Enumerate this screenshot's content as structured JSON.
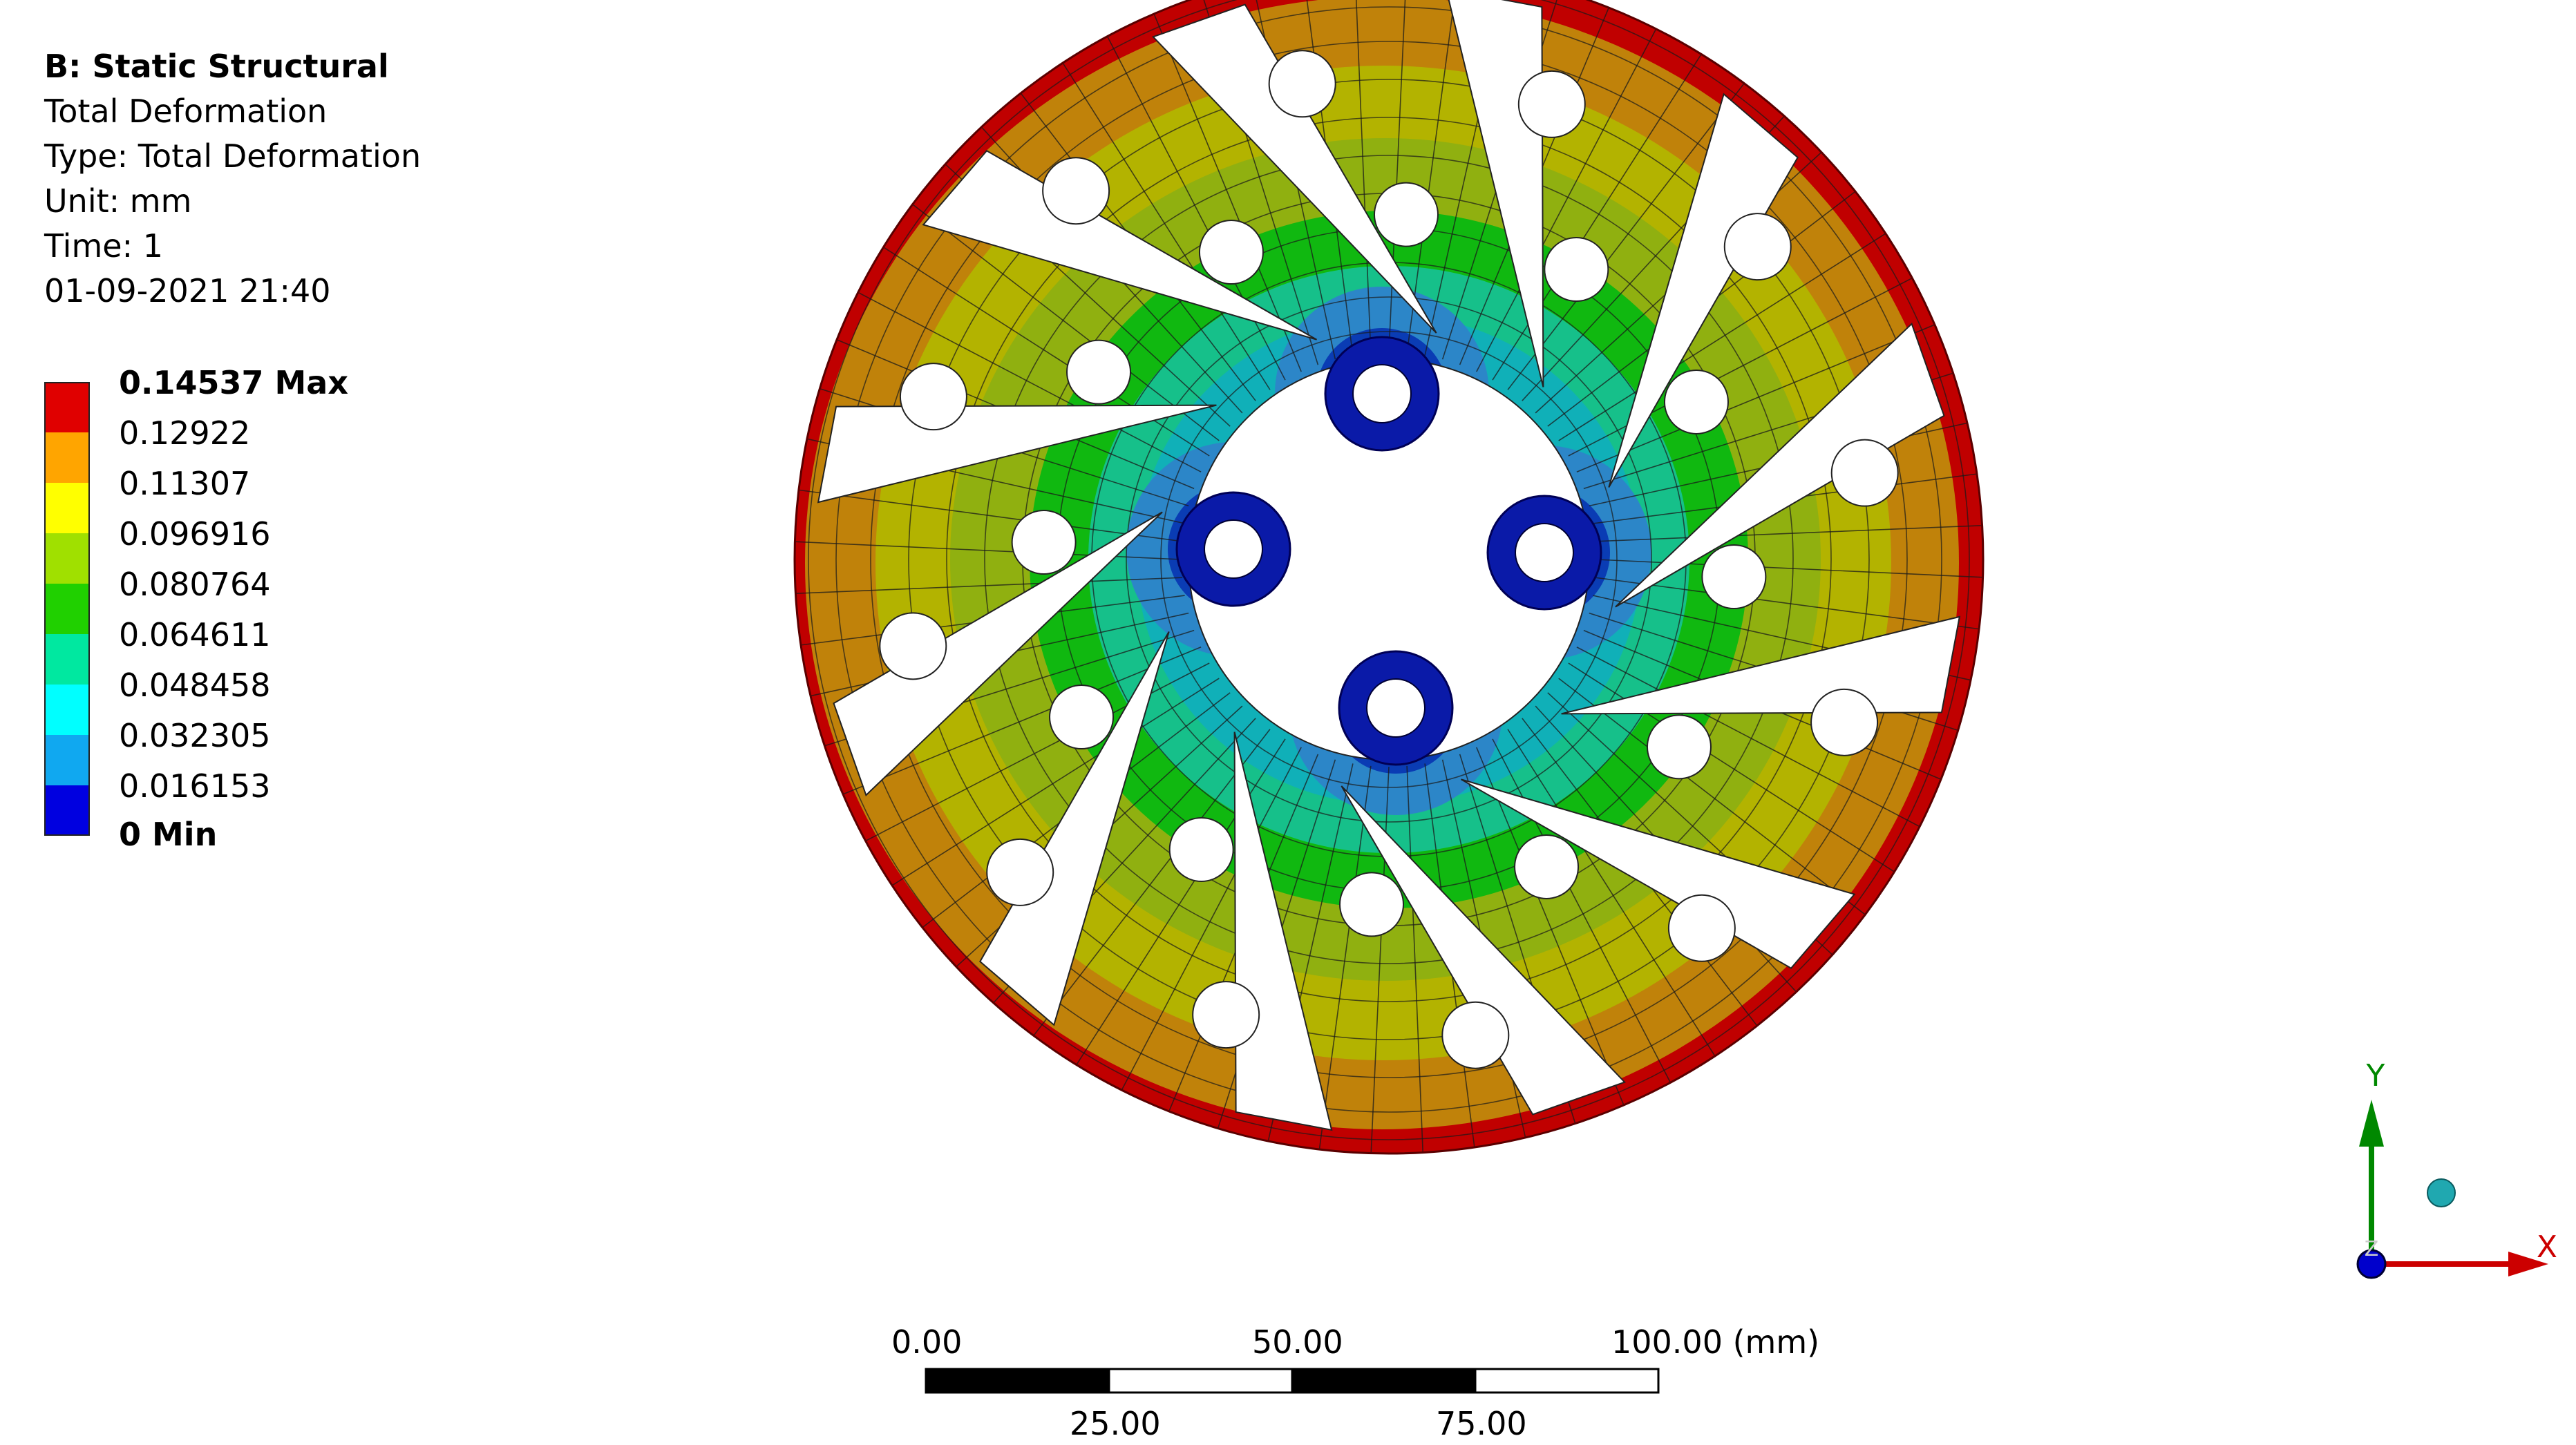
{
  "info": {
    "title": "B: Static Structural",
    "result": "Total Deformation",
    "type": "Type: Total Deformation",
    "unit": "Unit: mm",
    "time": "Time: 1",
    "timestamp": "01-09-2021 21:40"
  },
  "legend": {
    "labels": [
      "0.14537 Max",
      "0.12922",
      "0.11307",
      "0.096916",
      "0.080764",
      "0.064611",
      "0.048458",
      "0.032305",
      "0.016153"
    ],
    "min_label": "0 Min",
    "colors": [
      "#e00000",
      "#ffa500",
      "#ffff00",
      "#a0e000",
      "#20d000",
      "#00e8a0",
      "#00ffff",
      "#10a8f0",
      "#0000e0"
    ]
  },
  "scale_bar": {
    "top_labels": [
      "0.00",
      "50.00",
      "100.00 (mm)"
    ],
    "bottom_labels": [
      "25.00",
      "75.00"
    ]
  },
  "triad": {
    "x_label": "X",
    "y_label": "Y",
    "z_label": "Z",
    "colors": {
      "x": "#cc0000",
      "y": "#008800",
      "z": "#0000cc"
    }
  },
  "contour_colors": {
    "max": "#c00000",
    "orange": "#c0820a",
    "yellow_olive": "#b3b300",
    "yellow_green": "#90b010",
    "green": "#10b810",
    "teal": "#16c08a",
    "cyan": "#10b0b8",
    "light_blue": "#2c86c8",
    "blue": "#0a3cb4",
    "min": "#0a1aa8"
  }
}
